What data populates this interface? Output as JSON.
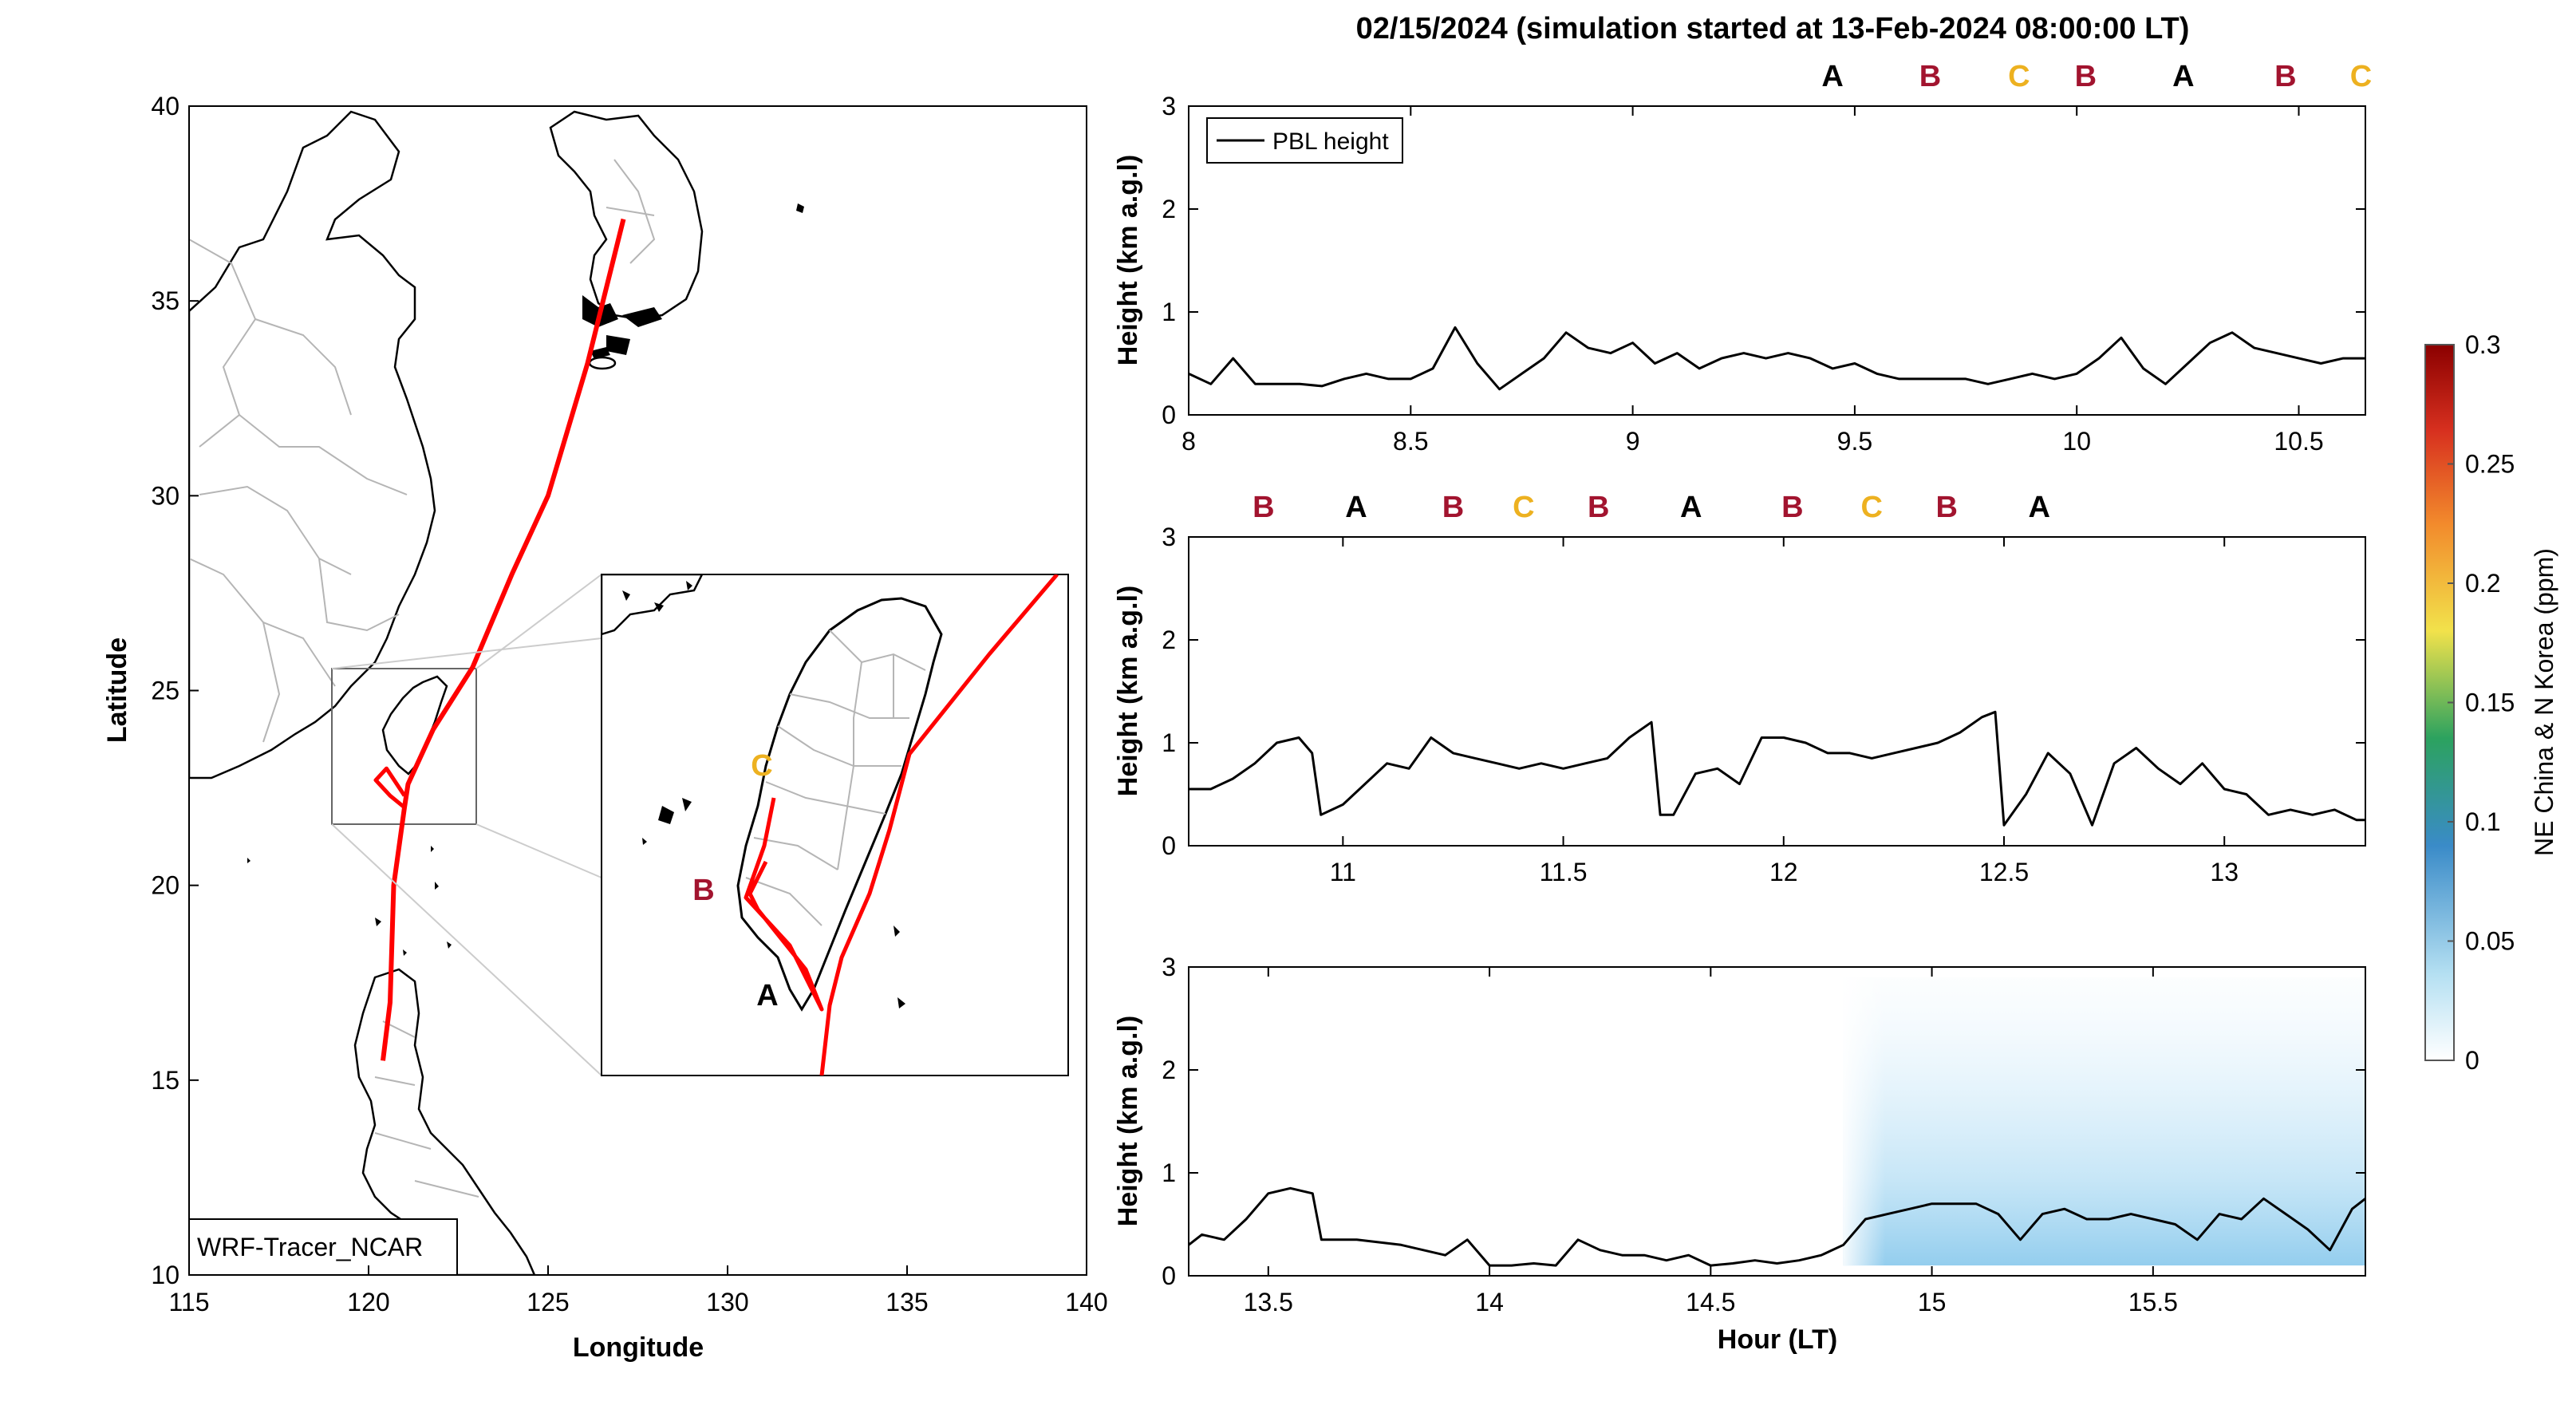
{
  "title": "02/15/2024 (simulation started at 13-Feb-2024 08:00:00 LT)",
  "letter_colors": {
    "A": "#000000",
    "B": "#a2142f",
    "C": "#edb120"
  },
  "map": {
    "xlabel": "Longitude",
    "ylabel": "Latitude",
    "xticks": [
      "115",
      "120",
      "125",
      "130",
      "135",
      "140"
    ],
    "yticks": [
      "10",
      "15",
      "20",
      "25",
      "30",
      "35",
      "40"
    ],
    "xlim": [
      115,
      140
    ],
    "ylim": [
      10,
      40
    ],
    "model_label": "WRF-Tracer_NCAR",
    "track_color": "#ff0000",
    "track": [
      [
        127.1,
        37.1
      ],
      [
        126.1,
        33.4
      ],
      [
        125.0,
        30.0
      ],
      [
        124.0,
        28.0
      ],
      [
        122.9,
        25.6
      ],
      [
        121.8,
        24.0
      ],
      [
        121.1,
        22.6
      ],
      [
        121.0,
        22.0
      ],
      [
        120.7,
        20.0
      ],
      [
        120.6,
        17.0
      ],
      [
        120.4,
        15.5
      ]
    ],
    "track2": [
      [
        121.0,
        22.3
      ],
      [
        120.5,
        23.0
      ],
      [
        120.2,
        22.7
      ],
      [
        120.6,
        22.3
      ],
      [
        121.0,
        22.0
      ]
    ],
    "inset_site_labels": [
      "C",
      "B",
      "A"
    ]
  },
  "chart_data": [
    {
      "type": "line",
      "ylabel": "Height (km a.g.l)",
      "legend": "PBL height",
      "xlim": [
        8,
        10.65
      ],
      "ylim": [
        0,
        3
      ],
      "xticks": [
        "8",
        "8.5",
        "9",
        "9.5",
        "10",
        "10.5"
      ],
      "yticks": [
        "0",
        "1",
        "2",
        "3"
      ],
      "top_letters": [
        "A",
        "B",
        "C",
        "B",
        "A",
        "B",
        "C"
      ],
      "top_letter_x": [
        9.45,
        9.67,
        9.87,
        10.02,
        10.24,
        10.47,
        10.64
      ],
      "series": [
        {
          "name": "PBL height",
          "x": [
            8.0,
            8.05,
            8.1,
            8.15,
            8.2,
            8.25,
            8.3,
            8.35,
            8.4,
            8.45,
            8.5,
            8.55,
            8.6,
            8.65,
            8.7,
            8.75,
            8.8,
            8.85,
            8.9,
            8.95,
            9.0,
            9.05,
            9.1,
            9.15,
            9.2,
            9.25,
            9.3,
            9.35,
            9.4,
            9.45,
            9.5,
            9.55,
            9.6,
            9.65,
            9.7,
            9.75,
            9.8,
            9.85,
            9.9,
            9.95,
            10.0,
            10.05,
            10.1,
            10.15,
            10.2,
            10.25,
            10.3,
            10.35,
            10.4,
            10.45,
            10.5,
            10.55,
            10.6,
            10.65
          ],
          "y": [
            0.4,
            0.3,
            0.55,
            0.3,
            0.3,
            0.3,
            0.28,
            0.35,
            0.4,
            0.35,
            0.35,
            0.45,
            0.85,
            0.5,
            0.25,
            0.4,
            0.55,
            0.8,
            0.65,
            0.6,
            0.7,
            0.5,
            0.6,
            0.45,
            0.55,
            0.6,
            0.55,
            0.6,
            0.55,
            0.45,
            0.5,
            0.4,
            0.35,
            0.35,
            0.35,
            0.35,
            0.3,
            0.35,
            0.4,
            0.35,
            0.4,
            0.55,
            0.75,
            0.45,
            0.3,
            0.5,
            0.7,
            0.8,
            0.65,
            0.6,
            0.55,
            0.5,
            0.55,
            0.55
          ]
        }
      ]
    },
    {
      "type": "line",
      "ylabel": "Height (km a.g.l)",
      "xlim": [
        10.65,
        13.32
      ],
      "ylim": [
        0,
        3
      ],
      "xticks": [
        "11",
        "11.5",
        "12",
        "12.5",
        "13"
      ],
      "yticks": [
        "0",
        "1",
        "2",
        "3"
      ],
      "top_letters": [
        "B",
        "A",
        "B",
        "C",
        "B",
        "A",
        "B",
        "C",
        "B",
        "A"
      ],
      "top_letter_x": [
        10.82,
        11.03,
        11.25,
        11.41,
        11.58,
        11.79,
        12.02,
        12.2,
        12.37,
        12.58
      ],
      "series": [
        {
          "name": "PBL height",
          "x": [
            10.65,
            10.7,
            10.75,
            10.8,
            10.85,
            10.9,
            10.93,
            10.95,
            11.0,
            11.05,
            11.1,
            11.15,
            11.2,
            11.25,
            11.3,
            11.35,
            11.4,
            11.45,
            11.5,
            11.55,
            11.6,
            11.65,
            11.7,
            11.72,
            11.75,
            11.8,
            11.85,
            11.9,
            11.95,
            12.0,
            12.05,
            12.1,
            12.15,
            12.2,
            12.25,
            12.3,
            12.35,
            12.4,
            12.45,
            12.48,
            12.5,
            12.55,
            12.6,
            12.65,
            12.7,
            12.75,
            12.8,
            12.85,
            12.9,
            12.95,
            13.0,
            13.05,
            13.1,
            13.15,
            13.2,
            13.25,
            13.3,
            13.32
          ],
          "y": [
            0.55,
            0.55,
            0.65,
            0.8,
            1.0,
            1.05,
            0.9,
            0.3,
            0.4,
            0.6,
            0.8,
            0.75,
            1.05,
            0.9,
            0.85,
            0.8,
            0.75,
            0.8,
            0.75,
            0.8,
            0.85,
            1.05,
            1.2,
            0.3,
            0.3,
            0.7,
            0.75,
            0.6,
            1.05,
            1.05,
            1.0,
            0.9,
            0.9,
            0.85,
            0.9,
            0.95,
            1.0,
            1.1,
            1.25,
            1.3,
            0.2,
            0.5,
            0.9,
            0.7,
            0.2,
            0.8,
            0.95,
            0.75,
            0.6,
            0.8,
            0.55,
            0.5,
            0.3,
            0.35,
            0.3,
            0.35,
            0.25,
            0.25
          ]
        }
      ]
    },
    {
      "type": "line",
      "ylabel": "Height (km a.g.l)",
      "xlabel": "Hour (LT)",
      "xlim": [
        13.32,
        15.98
      ],
      "ylim": [
        0,
        3
      ],
      "xticks": [
        "13.5",
        "14",
        "14.5",
        "15",
        "15.5"
      ],
      "yticks": [
        "0",
        "1",
        "2",
        "3"
      ],
      "top_letters": [],
      "top_letter_x": [],
      "tracer_shading": {
        "start_x": 14.8,
        "end_x": 15.98,
        "bottom_km": 0.1,
        "top_km": 2.9
      },
      "series": [
        {
          "name": "PBL height",
          "x": [
            13.32,
            13.35,
            13.4,
            13.45,
            13.5,
            13.55,
            13.6,
            13.62,
            13.7,
            13.8,
            13.9,
            13.95,
            14.0,
            14.05,
            14.1,
            14.15,
            14.2,
            14.25,
            14.3,
            14.35,
            14.4,
            14.45,
            14.5,
            14.55,
            14.6,
            14.65,
            14.7,
            14.75,
            14.8,
            14.85,
            14.9,
            14.95,
            15.0,
            15.05,
            15.1,
            15.15,
            15.2,
            15.25,
            15.3,
            15.35,
            15.4,
            15.45,
            15.5,
            15.55,
            15.6,
            15.65,
            15.7,
            15.75,
            15.8,
            15.85,
            15.9,
            15.95,
            15.98
          ],
          "y": [
            0.3,
            0.4,
            0.35,
            0.55,
            0.8,
            0.85,
            0.8,
            0.35,
            0.35,
            0.3,
            0.2,
            0.35,
            0.1,
            0.1,
            0.12,
            0.1,
            0.35,
            0.25,
            0.2,
            0.2,
            0.15,
            0.2,
            0.1,
            0.12,
            0.15,
            0.12,
            0.15,
            0.2,
            0.3,
            0.55,
            0.6,
            0.65,
            0.7,
            0.7,
            0.7,
            0.6,
            0.35,
            0.6,
            0.65,
            0.55,
            0.55,
            0.6,
            0.55,
            0.5,
            0.35,
            0.6,
            0.55,
            0.75,
            0.6,
            0.45,
            0.25,
            0.65,
            0.75
          ]
        }
      ]
    }
  ],
  "colorbar": {
    "label": "NE China & N Korea (ppm)",
    "ticks": [
      "0",
      "0.05",
      "0.1",
      "0.15",
      "0.2",
      "0.25",
      "0.3"
    ],
    "range": [
      0,
      0.3
    ],
    "colormap": [
      "#ffffff",
      "#b5e0f2",
      "#3a8bc8",
      "#2ca25f",
      "#f2e24b",
      "#f28a2c",
      "#d7301f",
      "#8b0000"
    ]
  }
}
